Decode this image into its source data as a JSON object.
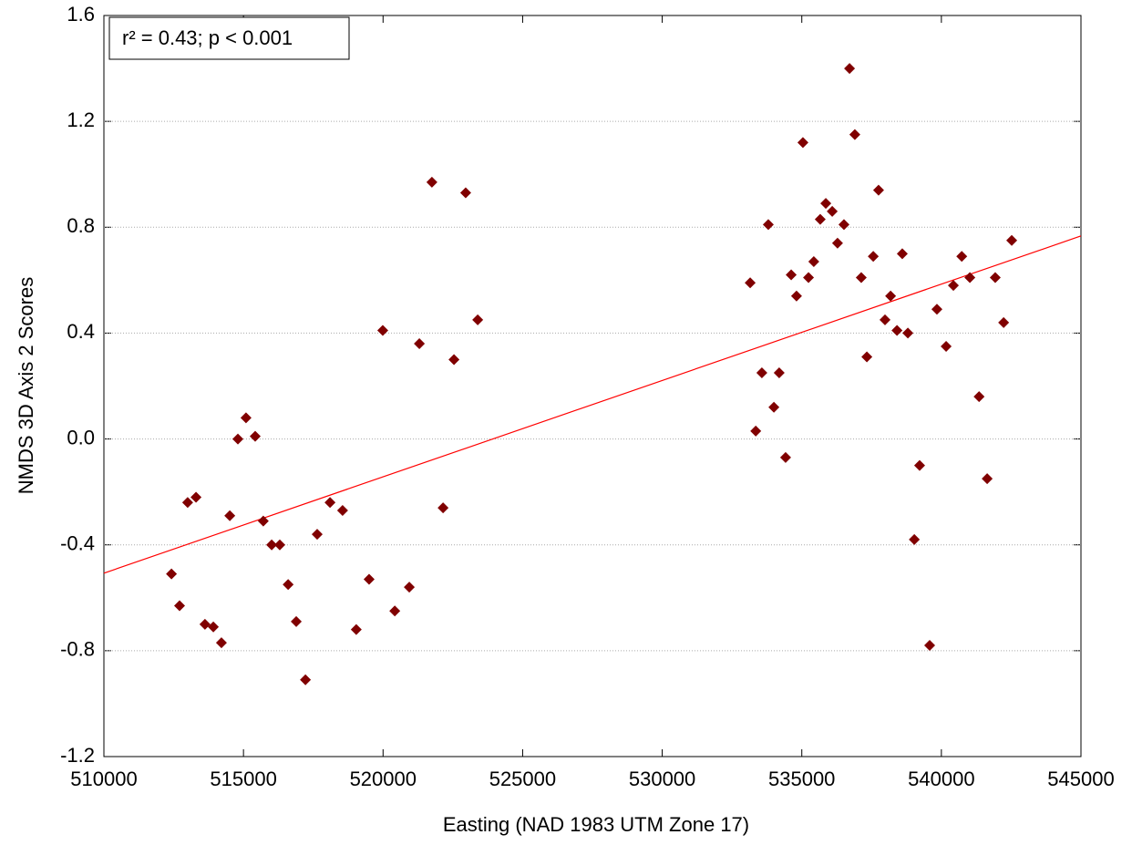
{
  "chart_data": {
    "type": "scatter",
    "x_label": "Easting (NAD 1983 UTM Zone 17)",
    "y_label": "NMDS 3D Axis 2 Scores",
    "annotation": "r² = 0.43;  p < 0.001",
    "xlim": [
      510000,
      545000
    ],
    "ylim": [
      -1.2,
      1.6
    ],
    "xticks": [
      510000,
      515000,
      520000,
      525000,
      530000,
      535000,
      540000,
      545000
    ],
    "yticks": [
      1.6,
      1.2,
      0.8,
      0.4,
      {
        "value": 0,
        "label": "0.0"
      },
      -0.4,
      -0.8,
      -1.2
    ],
    "grid": true,
    "color": "#800000",
    "x": [
      512420,
      512710,
      513000,
      513300,
      513620,
      513920,
      514210,
      514510,
      514800,
      515090,
      515420,
      515710,
      516010,
      516300,
      516600,
      516890,
      517220,
      517640,
      518100,
      518550,
      519040,
      519500,
      519990,
      520420,
      520940,
      521300,
      521750,
      522150,
      522540,
      522960,
      523390,
      533150,
      533350,
      533570,
      533800,
      534000,
      534190,
      534420,
      534620,
      534810,
      535040,
      535240,
      535430,
      535660,
      535860,
      536090,
      536280,
      536510,
      536710,
      536900,
      537130,
      537330,
      537560,
      537750,
      537980,
      538180,
      538410,
      538600,
      538800,
      539030,
      539220,
      539580,
      539840,
      540170,
      540430,
      540730,
      541020,
      541350,
      541640,
      541930,
      542230,
      542520
    ],
    "values": [
      -0.51,
      -0.63,
      -0.24,
      -0.22,
      -0.7,
      -0.71,
      -0.77,
      -0.29,
      0.0,
      0.08,
      0.01,
      -0.31,
      -0.4,
      -0.4,
      -0.55,
      -0.69,
      -0.91,
      -0.36,
      -0.24,
      -0.27,
      -0.72,
      -0.53,
      0.41,
      -0.65,
      -0.56,
      0.36,
      0.97,
      -0.26,
      0.3,
      0.93,
      0.45,
      0.59,
      0.03,
      0.25,
      0.81,
      0.12,
      0.25,
      -0.07,
      0.62,
      0.54,
      1.12,
      0.61,
      0.67,
      0.83,
      0.89,
      0.86,
      0.74,
      0.81,
      1.4,
      1.15,
      0.61,
      0.31,
      0.69,
      0.94,
      0.45,
      0.54,
      0.41,
      0.7,
      0.4,
      -0.38,
      -0.1,
      -0.78,
      0.49,
      0.35,
      0.58,
      0.69,
      0.61,
      0.16,
      -0.15,
      0.61,
      0.44,
      0.75
    ],
    "trend_line": {
      "color": "#ff0000",
      "x": [
        510000,
        545000
      ],
      "values": [
        -0.507,
        0.767
      ]
    }
  }
}
